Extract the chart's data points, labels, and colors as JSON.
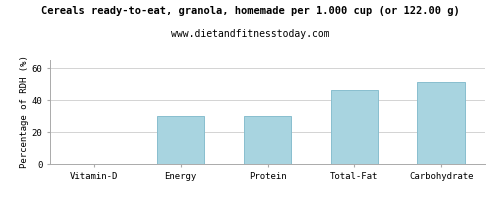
{
  "title": "Cereals ready-to-eat, granola, homemade per 1.000 cup (or 122.00 g)",
  "subtitle": "www.dietandfitnesstoday.com",
  "categories": [
    "Vitamin-D",
    "Energy",
    "Protein",
    "Total-Fat",
    "Carbohydrate"
  ],
  "values": [
    0,
    30,
    30,
    46,
    51
  ],
  "bar_color": "#a8d4e0",
  "bar_edge_color": "#88bece",
  "ylabel": "Percentage of RDH (%)",
  "ylim": [
    0,
    65
  ],
  "yticks": [
    0,
    20,
    40,
    60
  ],
  "background_color": "#ffffff",
  "grid_color": "#cccccc",
  "title_fontsize": 7.5,
  "subtitle_fontsize": 7.0,
  "ylabel_fontsize": 6.5,
  "tick_fontsize": 6.5
}
